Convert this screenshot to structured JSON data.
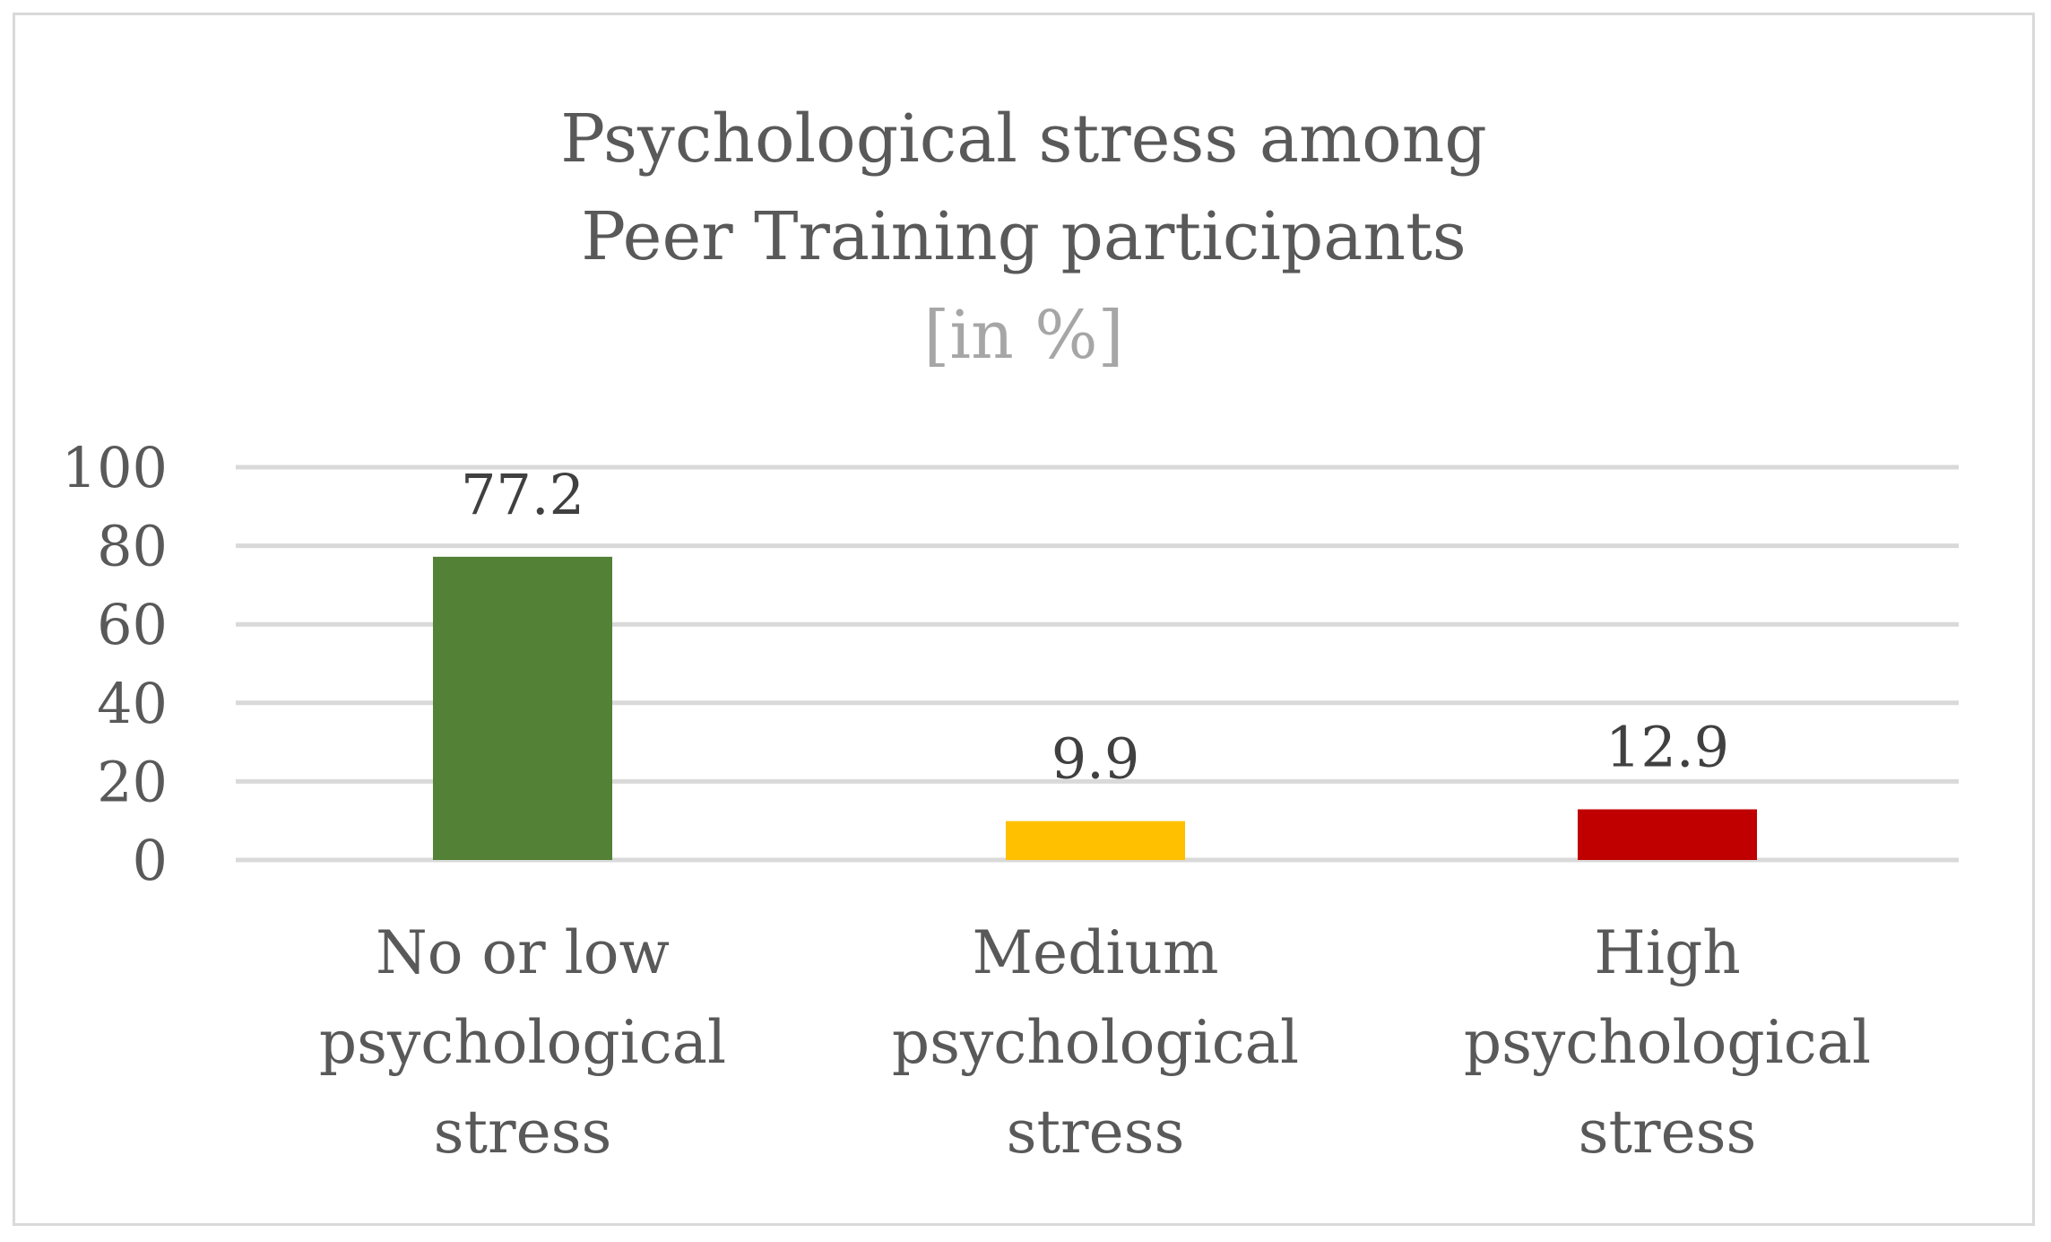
{
  "chart_data": {
    "type": "bar",
    "title": [
      "Psychological stress among",
      "Peer Training participants"
    ],
    "subtitle": "[in %]",
    "categories": [
      [
        "No or low",
        "psychological",
        "stress"
      ],
      [
        "Medium",
        "psychological",
        "stress"
      ],
      [
        "High",
        "psychological",
        "stress"
      ]
    ],
    "values": [
      77.2,
      9.9,
      12.9
    ],
    "data_labels": [
      "77.2",
      "9.9",
      "12.9"
    ],
    "bar_colors": [
      "#538135",
      "#ffc000",
      "#c00000"
    ],
    "ylim": [
      0,
      100
    ],
    "yticks": [
      0,
      20,
      40,
      60,
      80,
      100
    ],
    "grid": true,
    "legend": "none",
    "xlabel": "",
    "ylabel": ""
  }
}
